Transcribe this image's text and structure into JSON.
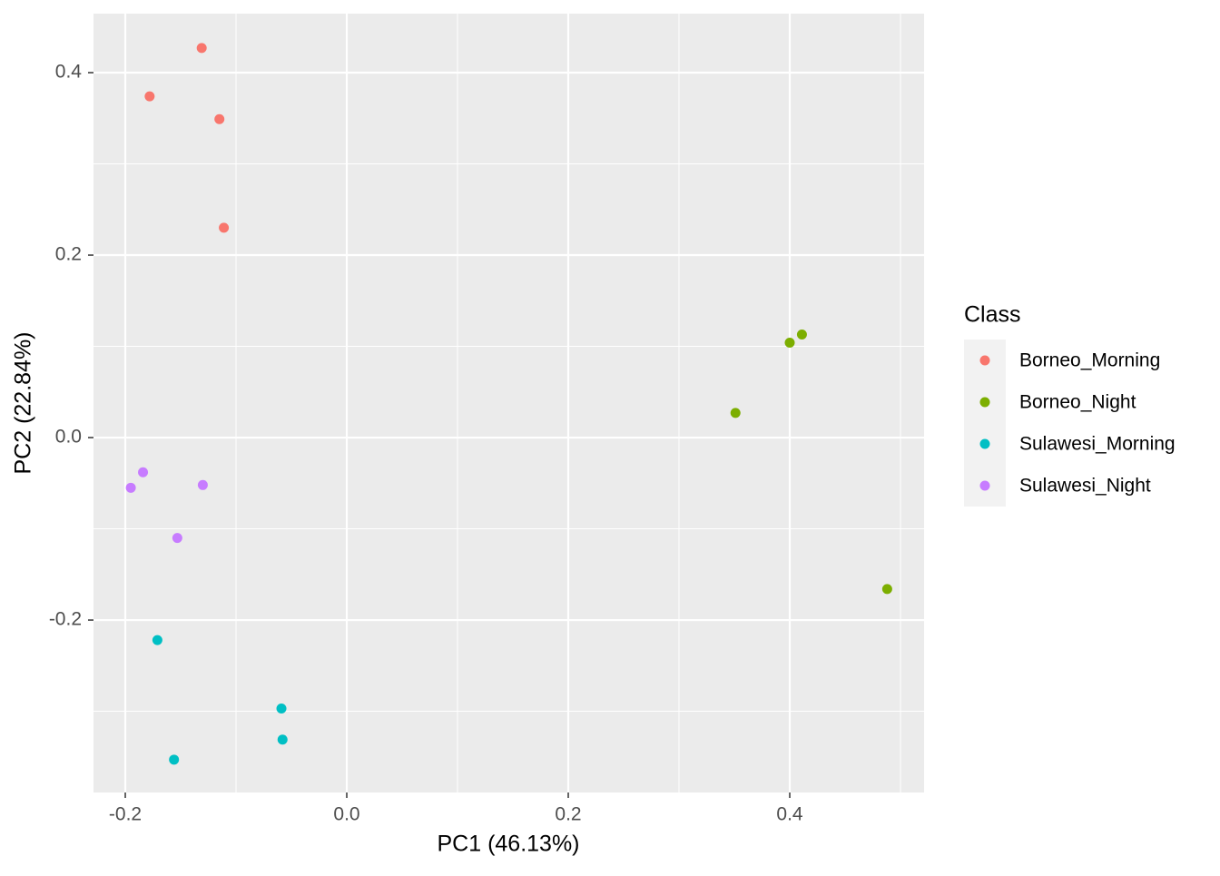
{
  "chart_data": {
    "type": "scatter",
    "x_label": "PC1 (46.13%)",
    "y_label": "PC2 (22.84%)",
    "legend_title": "Class",
    "legend_position": "right",
    "grid": true,
    "xlim": [
      -0.2287,
      0.5213
    ],
    "ylim": [
      -0.389,
      0.4647
    ],
    "xticks": [
      {
        "value": -0.2,
        "label": "-0.2"
      },
      {
        "value": 0,
        "label": "0.0"
      },
      {
        "value": 0.2,
        "label": "0.2"
      },
      {
        "value": 0.4,
        "label": "0.4"
      }
    ],
    "yticks": [
      {
        "value": -0.2,
        "label": "-0.2"
      },
      {
        "value": 0,
        "label": "0.0"
      },
      {
        "value": 0.2,
        "label": "0.2"
      },
      {
        "value": 0.4,
        "label": "0.4"
      }
    ],
    "series": [
      {
        "name": "Borneo_Morning",
        "color": "#F8766D",
        "x": [
          -0.131,
          -0.178,
          -0.115,
          -0.111
        ],
        "values": [
          0.427,
          0.374,
          0.349,
          0.23
        ]
      },
      {
        "name": "Borneo_Night",
        "color": "#7CAE00",
        "x": [
          0.4,
          0.411,
          0.351,
          0.488
        ],
        "values": [
          0.104,
          0.113,
          0.027,
          -0.166
        ]
      },
      {
        "name": "Sulawesi_Morning",
        "color": "#00BFC4",
        "x": [
          -0.171,
          -0.059,
          -0.058,
          -0.156
        ],
        "values": [
          -0.222,
          -0.297,
          -0.331,
          -0.353
        ]
      },
      {
        "name": "Sulawesi_Night",
        "color": "#C77CFF",
        "x": [
          -0.184,
          -0.195,
          -0.13,
          -0.153
        ],
        "values": [
          -0.038,
          -0.055,
          -0.052,
          -0.11
        ]
      }
    ]
  }
}
